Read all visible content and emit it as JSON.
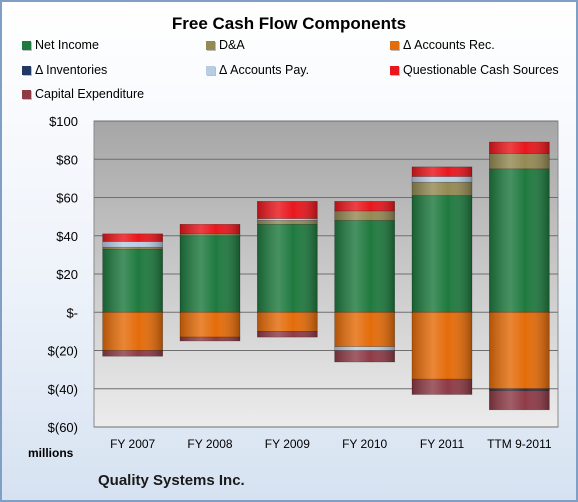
{
  "chart_data": {
    "type": "bar",
    "stacked": true,
    "title": "Free Cash Flow Components",
    "units_label": "millions",
    "footer": "Quality Systems Inc.",
    "categories": [
      "FY 2007",
      "FY 2008",
      "FY 2009",
      "FY 2010",
      "FY 2011",
      "TTM 9-2011"
    ],
    "ylim": [
      -60,
      100
    ],
    "yticks": [
      100,
      80,
      60,
      40,
      20,
      0,
      -20,
      -40,
      -60
    ],
    "ytick_labels": [
      "$100",
      "$80",
      "$60",
      "$40",
      "$20",
      "$-",
      "$(20)",
      "$(40)",
      "$(60)"
    ],
    "grid": true,
    "legend_position": "top",
    "series": [
      {
        "name": "Net Income",
        "color": "#1f7a3f",
        "values": [
          33,
          40,
          46,
          48,
          61,
          75
        ]
      },
      {
        "name": "D&A",
        "color": "#948a54",
        "values": [
          1,
          1,
          2,
          5,
          7,
          8
        ]
      },
      {
        "name": "Δ Accounts Rec.",
        "color": "#e46c0a",
        "values": [
          -20,
          -13,
          -10,
          -18,
          -35,
          -40
        ]
      },
      {
        "name": "Δ Inventories",
        "color": "#1f3864",
        "values": [
          0,
          0,
          0,
          0,
          0,
          -1
        ]
      },
      {
        "name": "Δ Accounts Pay.",
        "color": "#b8cce4",
        "values": [
          3,
          0,
          1,
          -2,
          3,
          0
        ]
      },
      {
        "name": "Questionable Cash Sources",
        "color": "#e8171d",
        "values": [
          4,
          5,
          9,
          5,
          5,
          6
        ]
      },
      {
        "name": "Capital Expenditure",
        "color": "#8e3b46",
        "values": [
          -3,
          -2,
          -3,
          -6,
          -8,
          -10
        ]
      }
    ]
  }
}
